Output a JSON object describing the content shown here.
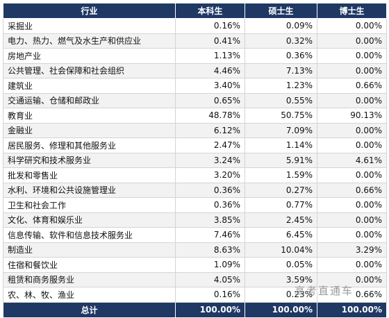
{
  "columns": [
    "行业",
    "本科生",
    "硕士生",
    "博士生"
  ],
  "rows": [
    {
      "industry": "采掘业",
      "bachelor": "0.16%",
      "master": "0.09%",
      "doctor": "0.00%"
    },
    {
      "industry": "电力、热力、燃气及水生产和供应业",
      "bachelor": "0.41%",
      "master": "0.32%",
      "doctor": "0.00%"
    },
    {
      "industry": "房地产业",
      "bachelor": "1.13%",
      "master": "0.36%",
      "doctor": "0.00%"
    },
    {
      "industry": "公共管理、社会保障和社会组织",
      "bachelor": "4.46%",
      "master": "7.13%",
      "doctor": "0.00%"
    },
    {
      "industry": "建筑业",
      "bachelor": "3.40%",
      "master": "1.23%",
      "doctor": "0.66%"
    },
    {
      "industry": "交通运输、仓储和邮政业",
      "bachelor": "0.65%",
      "master": "0.55%",
      "doctor": "0.00%"
    },
    {
      "industry": "教育业",
      "bachelor": "48.78%",
      "master": "50.75%",
      "doctor": "90.13%"
    },
    {
      "industry": "金融业",
      "bachelor": "6.12%",
      "master": "7.09%",
      "doctor": "0.00%"
    },
    {
      "industry": "居民服务、修理和其他服务业",
      "bachelor": "2.47%",
      "master": "1.14%",
      "doctor": "0.00%"
    },
    {
      "industry": "科学研究和技术服务业",
      "bachelor": "3.24%",
      "master": "5.91%",
      "doctor": "4.61%"
    },
    {
      "industry": "批发和零售业",
      "bachelor": "3.20%",
      "master": "1.59%",
      "doctor": "0.00%"
    },
    {
      "industry": "水利、环境和公共设施管理业",
      "bachelor": "0.36%",
      "master": "0.27%",
      "doctor": "0.66%"
    },
    {
      "industry": "卫生和社会工作",
      "bachelor": "0.36%",
      "master": "0.77%",
      "doctor": "0.00%"
    },
    {
      "industry": "文化、体育和娱乐业",
      "bachelor": "3.85%",
      "master": "2.45%",
      "doctor": "0.00%"
    },
    {
      "industry": "信息传输、软件和信息技术服务业",
      "bachelor": "7.46%",
      "master": "6.45%",
      "doctor": "0.00%"
    },
    {
      "industry": "制造业",
      "bachelor": "8.63%",
      "master": "10.04%",
      "doctor": "3.29%"
    },
    {
      "industry": "住宿和餐饮业",
      "bachelor": "1.09%",
      "master": "0.05%",
      "doctor": "0.00%"
    },
    {
      "industry": "租赁和商务服务业",
      "bachelor": "4.05%",
      "master": "3.59%",
      "doctor": "0.00%"
    },
    {
      "industry": "农、林、牧、渔业",
      "bachelor": "0.16%",
      "master": "0.23%",
      "doctor": "0.66%"
    }
  ],
  "total": {
    "label": "总计",
    "bachelor": "100.00%",
    "master": "100.00%",
    "doctor": "100.00%"
  },
  "watermark": "高考直通车"
}
